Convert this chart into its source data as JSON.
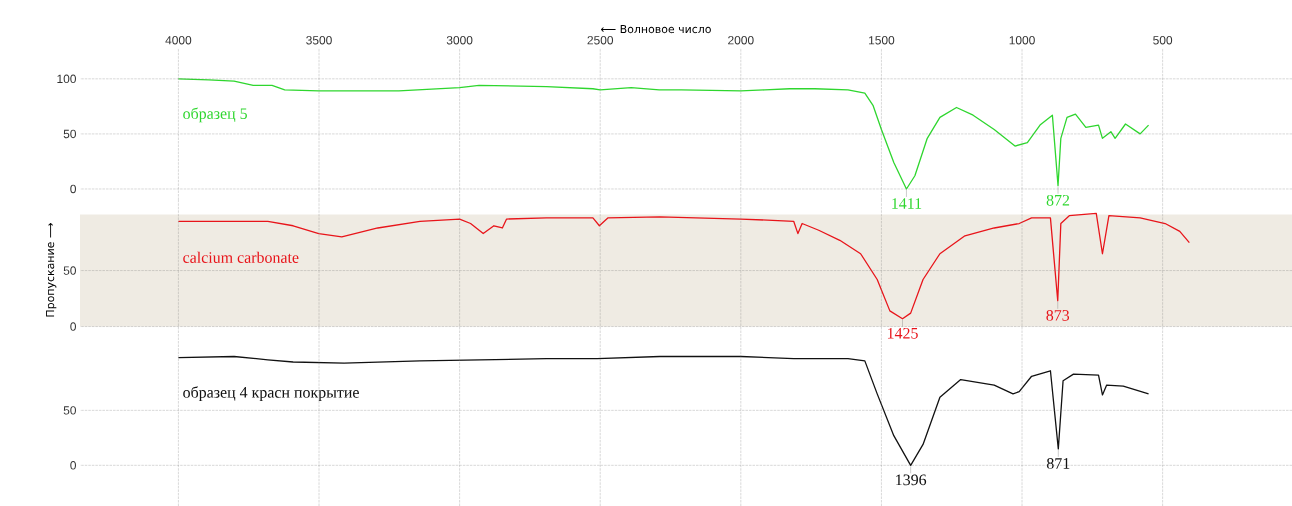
{
  "chart_data": [
    {
      "type": "line",
      "xlabel": "⟵ Волновое число",
      "xlim": [
        4350,
        40
      ],
      "xticks": [
        4000,
        3500,
        3000,
        2500,
        2000,
        1500,
        1000,
        500
      ],
      "ylim": [
        -10,
        128
      ],
      "yticks": [
        0,
        50,
        100
      ],
      "grid": true,
      "x": [
        4000,
        3892,
        3802,
        3734,
        3667,
        3622,
        3501,
        3366,
        3216,
        3000,
        2931,
        2691,
        2526,
        2500,
        2390,
        2290,
        2212,
        2000,
        1915,
        1826,
        1737,
        1619,
        1559,
        1530,
        1500,
        1456,
        1411,
        1381,
        1337,
        1292,
        1233,
        1174,
        1099,
        1025,
        981,
        936,
        892,
        872,
        862,
        840,
        810,
        773,
        728,
        714,
        684,
        669,
        632,
        580,
        550
      ],
      "series": [
        {
          "name": "образец 5",
          "color": "#2ed62e",
          "values": [
            100,
            99,
            98,
            94,
            94,
            90,
            89,
            89,
            89,
            92,
            94,
            93,
            91,
            90,
            92,
            90,
            90,
            89,
            90,
            91,
            91,
            90,
            87,
            76,
            54,
            24,
            0,
            12,
            46,
            65,
            74,
            67,
            54,
            39,
            42,
            58,
            67,
            3,
            46,
            65,
            68,
            56,
            58,
            46,
            52,
            46,
            59,
            50,
            58
          ]
        }
      ],
      "annotations": [
        {
          "text": "1411",
          "x": 1411,
          "y": 0
        },
        {
          "text": "872",
          "x": 872,
          "y": 3
        }
      ]
    },
    {
      "type": "line",
      "ylabel": "Пропускание ⟶",
      "xlim": [
        4350,
        40
      ],
      "xticks": [
        4000,
        3500,
        3000,
        2500,
        2000,
        1500,
        1000,
        500
      ],
      "ylim": [
        -12,
        113
      ],
      "yticks": [
        0,
        50
      ],
      "grid": true,
      "tick_labels": "y",
      "bands": [
        {
          "axis": "y",
          "from": 0,
          "to": 100,
          "color": "#efebe3"
        }
      ],
      "x": [
        4000,
        3682,
        3592,
        3501,
        3419,
        3291,
        3141,
        3000,
        2961,
        2916,
        2878,
        2848,
        2833,
        2691,
        2526,
        2503,
        2473,
        2288,
        2000,
        1812,
        1797,
        1782,
        1723,
        1648,
        1574,
        1515,
        1470,
        1425,
        1396,
        1352,
        1292,
        1203,
        1099,
        1010,
        966,
        899,
        873,
        862,
        832,
        736,
        714,
        691,
        580,
        491,
        439,
        405
      ],
      "series": [
        {
          "name": "calcium carbonate",
          "color": "#e8141a",
          "values": [
            94,
            94,
            90,
            83,
            80,
            88,
            94,
            96,
            92,
            83,
            90,
            88,
            96,
            97,
            97,
            90,
            97,
            98,
            96,
            94,
            83,
            92,
            86,
            77,
            65,
            42,
            14,
            7,
            12,
            42,
            65,
            81,
            88,
            92,
            97,
            97,
            23,
            92,
            99,
            101,
            65,
            99,
            97,
            92,
            85,
            75
          ]
        }
      ],
      "annotations": [
        {
          "text": "1425",
          "x": 1425,
          "y": 7
        },
        {
          "text": "873",
          "x": 873,
          "y": 23
        }
      ]
    },
    {
      "type": "line",
      "xlim": [
        4350,
        40
      ],
      "xticks": [
        4000,
        3500,
        3000,
        2500,
        2000,
        1500,
        1000,
        500
      ],
      "ylim": [
        -37,
        114
      ],
      "yticks": [
        0,
        50
      ],
      "grid": true,
      "tick_labels": "y",
      "x": [
        4000,
        3802,
        3682,
        3592,
        3411,
        3141,
        2691,
        2511,
        2288,
        2000,
        1812,
        1619,
        1559,
        1515,
        1456,
        1396,
        1352,
        1292,
        1218,
        1099,
        1032,
        1010,
        966,
        899,
        871,
        854,
        817,
        728,
        714,
        699,
        640,
        550
      ],
      "series": [
        {
          "name": "образец 4 красн покрытие",
          "color": "#111111",
          "values": [
            98,
            99,
            96,
            94,
            93,
            95,
            97,
            97,
            99,
            99,
            97,
            97,
            95,
            65,
            27,
            0,
            19,
            62,
            78,
            73,
            65,
            67,
            81,
            86,
            15,
            77,
            83,
            82,
            64,
            73,
            72,
            65
          ]
        }
      ],
      "annotations": [
        {
          "text": "1396",
          "x": 1396,
          "y": 0
        },
        {
          "text": "871",
          "x": 871,
          "y": 15
        }
      ]
    }
  ]
}
